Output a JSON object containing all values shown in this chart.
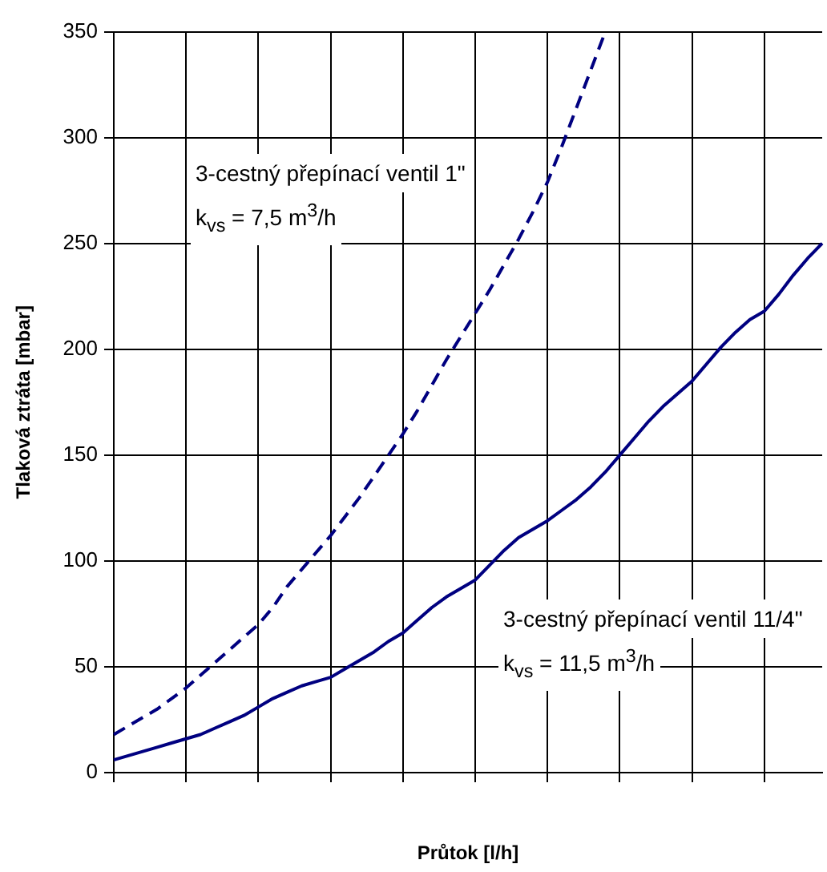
{
  "chart_data": {
    "type": "line",
    "xlabel": "Průtok [l/h]",
    "ylabel": "Tlaková ztráta [mbar]",
    "categories": [
      null,
      null,
      null,
      null,
      null,
      null,
      null,
      null,
      null,
      null,
      null,
      null,
      null,
      null,
      null,
      null,
      null,
      null,
      null,
      null,
      null,
      null,
      null,
      null,
      null,
      null,
      null,
      null,
      null,
      null,
      null,
      null,
      null,
      null,
      null,
      null,
      null,
      null,
      null,
      null,
      null,
      null,
      null,
      null,
      null,
      null,
      null,
      null,
      null,
      null
    ],
    "ylim": [
      0,
      350
    ],
    "yticks": [
      0,
      50,
      100,
      150,
      200,
      250,
      300,
      350
    ],
    "grid": true,
    "marker": "none",
    "series": [
      {
        "color": "#000080",
        "line_style": "dashed",
        "values": [
          18,
          22,
          26,
          30,
          35,
          40,
          46,
          52,
          58,
          64,
          70,
          78,
          88,
          96,
          104,
          112,
          121,
          130,
          140,
          150,
          160,
          171,
          183,
          195,
          206,
          217,
          228,
          240,
          252,
          265,
          279,
          296,
          314,
          332,
          350,
          null,
          null,
          null,
          null,
          null,
          null,
          null,
          null,
          null,
          null,
          null,
          null,
          null,
          null,
          null
        ]
      },
      {
        "color": "#000080",
        "line_style": "solid",
        "values": [
          6,
          8,
          10,
          12,
          14,
          16,
          18,
          21,
          24,
          27,
          31,
          35,
          38,
          41,
          43,
          45,
          49,
          53,
          57,
          62,
          66,
          72,
          78,
          83,
          87,
          91,
          98,
          105,
          111,
          115,
          119,
          124,
          129,
          135,
          142,
          150,
          158,
          166,
          173,
          179,
          185,
          193,
          201,
          208,
          214,
          218,
          226,
          235,
          243,
          250
        ]
      }
    ],
    "annotations": [
      "3-cestný přepínací ventil 1\"",
      "k$_{vs}$ = 7,5 m$^{3}$/h",
      "3-cestný přepínací ventil 11/4\"",
      "k$_{vs}$ = 11,5 m$^{3}$/h"
    ]
  }
}
